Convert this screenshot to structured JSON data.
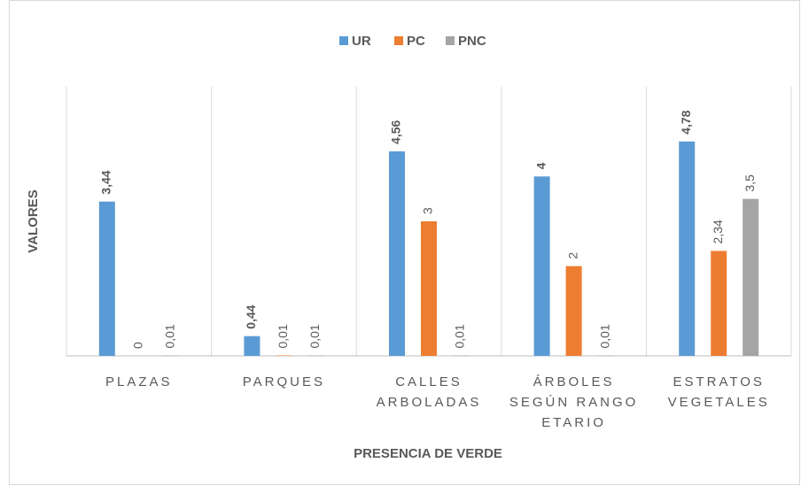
{
  "chart_data": {
    "type": "bar",
    "categories": [
      [
        "PLAZAS"
      ],
      [
        "PARQUES"
      ],
      [
        "CALLES",
        "ARBOLADAS"
      ],
      [
        "ÁRBOLES",
        "SEGÚN RANGO",
        "ETARIO"
      ],
      [
        "ESTRATOS",
        "VEGETALES"
      ]
    ],
    "series": [
      {
        "name": "UR",
        "color": "#5b9bd5",
        "values": [
          3.44,
          0.44,
          4.56,
          4,
          4.78
        ],
        "value_labels": [
          "3,44",
          "0,44",
          "4,56",
          "4",
          "4,78"
        ]
      },
      {
        "name": "PC",
        "color": "#ed7d31",
        "values": [
          0,
          0.01,
          3,
          2,
          2.34
        ],
        "value_labels": [
          "0",
          "0,01",
          "3",
          "2",
          "2,34"
        ]
      },
      {
        "name": "PNC",
        "color": "#a5a5a5",
        "values": [
          0.01,
          0.01,
          0.01,
          0.01,
          3.5
        ],
        "value_labels": [
          "0,01",
          "0,01",
          "0,01",
          "0,01",
          "3,5"
        ]
      }
    ],
    "ylim": [
      0,
      6
    ],
    "xlabel": "PRESENCIA DE VERDE",
    "ylabel": "VALORES"
  }
}
